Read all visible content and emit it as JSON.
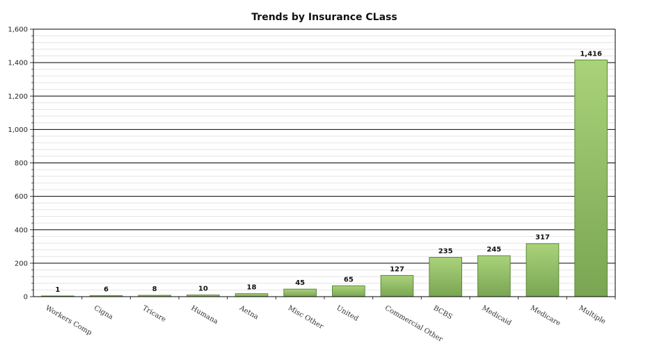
{
  "chart_data": {
    "type": "bar",
    "title": "Trends by Insurance CLass",
    "xlabel": "",
    "ylabel": "",
    "ylim": [
      0,
      1600
    ],
    "yticks": [
      0,
      200,
      400,
      600,
      800,
      1000,
      1200,
      1400,
      1600
    ],
    "ytick_labels": [
      "0",
      "200",
      "400",
      "600",
      "800",
      "1,000",
      "1,200",
      "1,400",
      "1,600"
    ],
    "grid": true,
    "categories": [
      "Workers Comp",
      "Cigna",
      "Tricare",
      "Humana",
      "Aetna",
      "Misc Other",
      "United",
      "Commercial Other",
      "BCBS",
      "Medicaid",
      "Medicare",
      "Multiple"
    ],
    "values": [
      1,
      6,
      8,
      10,
      18,
      45,
      65,
      127,
      235,
      245,
      317,
      1416
    ],
    "data_labels": [
      "1",
      "6",
      "8",
      "10",
      "18",
      "45",
      "65",
      "127",
      "235",
      "245",
      "317",
      "1,416"
    ],
    "colors": {
      "bar_top": "#a9d27a",
      "bar_bottom": "#7aa552",
      "bar_stroke": "#5d8a3a",
      "major_grid": "#000000",
      "minor_grid": "#e4e4e4"
    }
  }
}
